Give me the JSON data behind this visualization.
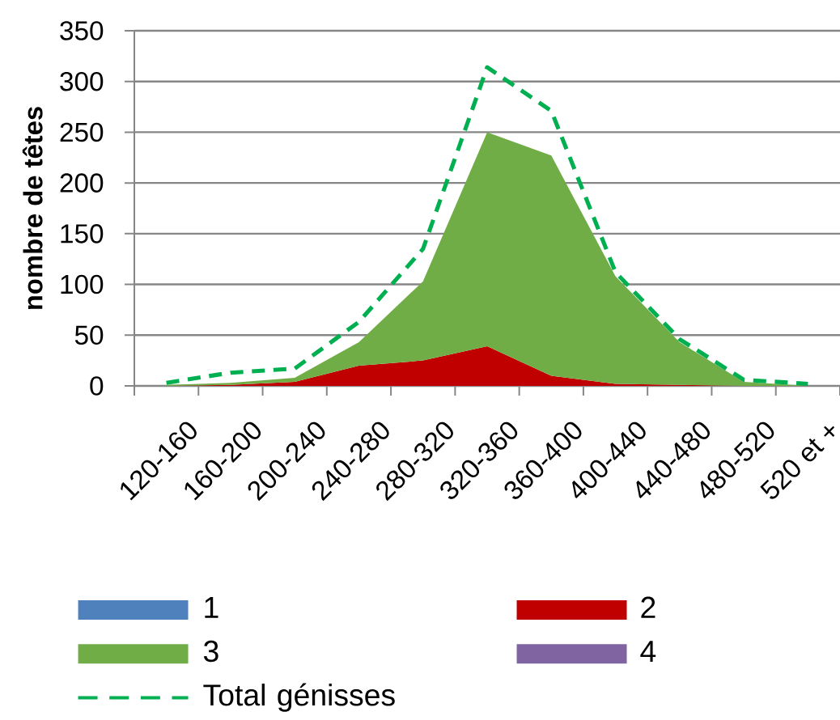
{
  "chart_data": {
    "type": "area",
    "stacked": true,
    "ylabel": "nombre de têtes",
    "categories": [
      "120-160",
      "160-200",
      "200-240",
      "240-280",
      "280-320",
      "320-360",
      "360-400",
      "400-440",
      "440-480",
      "480-520",
      "520 et +"
    ],
    "ylim": [
      0,
      350
    ],
    "yticks": [
      0,
      50,
      100,
      150,
      200,
      250,
      300,
      350
    ],
    "grid": "y",
    "legend": "bottom",
    "series": [
      {
        "name": "1",
        "color": "#4f81bd",
        "values": [
          null,
          null,
          null,
          null,
          null,
          null,
          null,
          null,
          null,
          null,
          null
        ]
      },
      {
        "name": "2",
        "color": "#c00000",
        "values": [
          0,
          1,
          4,
          20,
          25,
          39,
          10,
          2,
          1,
          0,
          0
        ]
      },
      {
        "name": "3",
        "color": "#70ad47",
        "values": [
          1,
          2,
          4,
          23,
          78,
          211,
          217,
          106,
          42,
          4,
          0
        ]
      },
      {
        "name": "4",
        "color": "#8064a2",
        "values": [
          null,
          null,
          null,
          null,
          null,
          null,
          null,
          null,
          null,
          null,
          null
        ]
      },
      {
        "name": "Total génisses",
        "type": "line",
        "color": "#00b050",
        "line_style": "dashed",
        "values": [
          3,
          13,
          17,
          63,
          135,
          314,
          271,
          112,
          46,
          6,
          2
        ]
      }
    ]
  }
}
